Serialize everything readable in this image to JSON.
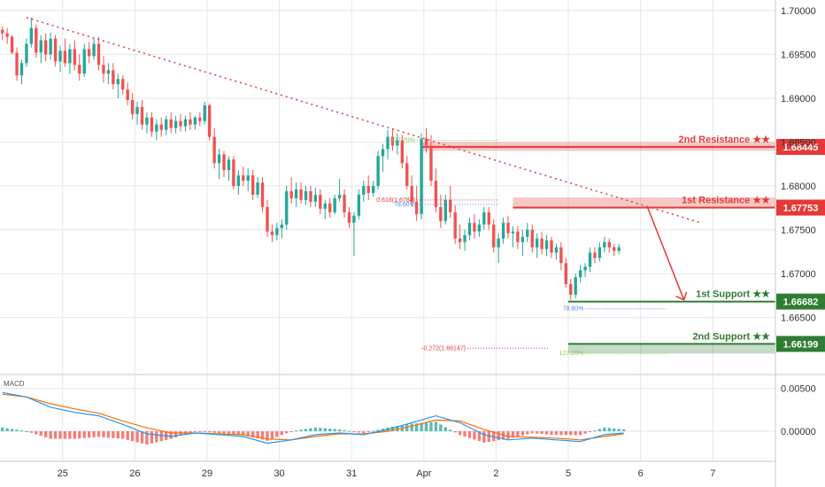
{
  "chart_data": {
    "type": "candlestick",
    "price_axis": {
      "ticks": [
        "1.70000",
        "1.69500",
        "1.69000",
        "1.68500",
        "1.68000",
        "1.67500",
        "1.67000",
        "1.66500"
      ],
      "tick_values": [
        1.7,
        1.695,
        1.69,
        1.685,
        1.68,
        1.675,
        1.67,
        1.665
      ],
      "ylim": [
        1.6585,
        1.7012
      ]
    },
    "time_axis": {
      "labels": [
        "25",
        "26",
        "29",
        "30",
        "31",
        "Apr",
        "2",
        "5",
        "6",
        "7"
      ],
      "positions": [
        1,
        4,
        7,
        10,
        13,
        16,
        19,
        22,
        25,
        28
      ]
    },
    "candles": [
      [
        -1.5,
        1.6978,
        1.6982,
        1.6966,
        1.6974
      ],
      [
        -1.3,
        1.6974,
        1.698,
        1.6962,
        1.697
      ],
      [
        -1.1,
        1.697,
        1.6972,
        1.695,
        1.6952
      ],
      [
        -0.9,
        1.6952,
        1.6958,
        1.692,
        1.6926
      ],
      [
        -0.7,
        1.6926,
        1.6944,
        1.6916,
        1.694
      ],
      [
        -0.5,
        1.694,
        1.6968,
        1.6936,
        1.6962
      ],
      [
        -0.3,
        1.6962,
        1.6992,
        1.6958,
        1.698
      ],
      [
        -0.1,
        1.698,
        1.6984,
        1.6946,
        1.6952
      ],
      [
        0.1,
        1.6952,
        1.6972,
        1.694,
        1.6966
      ],
      [
        0.3,
        1.6966,
        1.6974,
        1.6942,
        1.695
      ],
      [
        0.5,
        1.695,
        1.6975,
        1.6944,
        1.6968
      ],
      [
        0.7,
        1.6968,
        1.6972,
        1.6936,
        1.6942
      ],
      [
        0.9,
        1.6942,
        1.696,
        1.693,
        1.6954
      ],
      [
        1.1,
        1.6954,
        1.6968,
        1.6936,
        1.694
      ],
      [
        1.3,
        1.694,
        1.6962,
        1.6928,
        1.6956
      ],
      [
        1.5,
        1.6956,
        1.6966,
        1.6932,
        1.6938
      ],
      [
        1.7,
        1.6938,
        1.695,
        1.692,
        1.6928
      ],
      [
        1.9,
        1.6928,
        1.6962,
        1.6924,
        1.6956
      ],
      [
        2.1,
        1.6956,
        1.6964,
        1.694,
        1.6948
      ],
      [
        2.3,
        1.6948,
        1.6968,
        1.6944,
        1.6962
      ],
      [
        2.5,
        1.6962,
        1.697,
        1.6932,
        1.6938
      ],
      [
        2.7,
        1.6938,
        1.6948,
        1.6918,
        1.6928
      ],
      [
        2.9,
        1.6928,
        1.694,
        1.6916,
        1.6932
      ],
      [
        3.1,
        1.6932,
        1.694,
        1.691,
        1.6916
      ],
      [
        3.3,
        1.6916,
        1.6928,
        1.69,
        1.6922
      ],
      [
        3.5,
        1.6922,
        1.6926,
        1.6904,
        1.691
      ],
      [
        3.7,
        1.691,
        1.6918,
        1.6892,
        1.6898
      ],
      [
        3.9,
        1.6898,
        1.6906,
        1.6876,
        1.6882
      ],
      [
        4.1,
        1.6882,
        1.6896,
        1.687,
        1.689
      ],
      [
        4.3,
        1.689,
        1.6898,
        1.6864,
        1.687
      ],
      [
        4.5,
        1.687,
        1.6884,
        1.686,
        1.6878
      ],
      [
        4.7,
        1.6878,
        1.6884,
        1.6856,
        1.6862
      ],
      [
        4.9,
        1.6862,
        1.6876,
        1.6852,
        1.687
      ],
      [
        5.1,
        1.687,
        1.6878,
        1.6856,
        1.6864
      ],
      [
        5.3,
        1.6864,
        1.688,
        1.6858,
        1.6876
      ],
      [
        5.5,
        1.6876,
        1.6884,
        1.686,
        1.6866
      ],
      [
        5.7,
        1.6866,
        1.688,
        1.686,
        1.6874
      ],
      [
        5.9,
        1.6874,
        1.6882,
        1.6862,
        1.6868
      ],
      [
        6.1,
        1.6868,
        1.688,
        1.6862,
        1.6876
      ],
      [
        6.3,
        1.6876,
        1.6884,
        1.6864,
        1.687
      ],
      [
        6.5,
        1.687,
        1.688,
        1.6864,
        1.6878
      ],
      [
        6.7,
        1.6878,
        1.6884,
        1.6868,
        1.6874
      ],
      [
        6.9,
        1.6874,
        1.6896,
        1.687,
        1.6892
      ],
      [
        7.1,
        1.6892,
        1.6894,
        1.6852,
        1.6856
      ],
      [
        7.3,
        1.6856,
        1.6866,
        1.682,
        1.6826
      ],
      [
        7.5,
        1.6826,
        1.6842,
        1.6808,
        1.6836
      ],
      [
        7.7,
        1.6836,
        1.684,
        1.681,
        1.6818
      ],
      [
        7.9,
        1.6818,
        1.6834,
        1.6806,
        1.683
      ],
      [
        8.1,
        1.683,
        1.6834,
        1.6796,
        1.68
      ],
      [
        8.3,
        1.68,
        1.6818,
        1.679,
        1.6812
      ],
      [
        8.5,
        1.6812,
        1.6822,
        1.68,
        1.6806
      ],
      [
        8.7,
        1.6806,
        1.682,
        1.6794,
        1.6812
      ],
      [
        8.9,
        1.6812,
        1.6818,
        1.6784,
        1.679
      ],
      [
        9.1,
        1.679,
        1.681,
        1.6786,
        1.6804
      ],
      [
        9.3,
        1.6804,
        1.681,
        1.677,
        1.6776
      ],
      [
        9.5,
        1.6776,
        1.6784,
        1.6742,
        1.6748
      ],
      [
        9.7,
        1.6748,
        1.6756,
        1.6736,
        1.6744
      ],
      [
        9.9,
        1.6744,
        1.6758,
        1.6738,
        1.6752
      ],
      [
        10.1,
        1.6752,
        1.6762,
        1.674,
        1.6756
      ],
      [
        10.3,
        1.6756,
        1.68,
        1.675,
        1.6794
      ],
      [
        10.5,
        1.6794,
        1.681,
        1.678,
        1.6786
      ],
      [
        10.7,
        1.6786,
        1.6804,
        1.6776,
        1.6796
      ],
      [
        10.9,
        1.6796,
        1.6804,
        1.678,
        1.6784
      ],
      [
        11.1,
        1.6784,
        1.68,
        1.6778,
        1.6794
      ],
      [
        11.3,
        1.6794,
        1.68,
        1.6776,
        1.6782
      ],
      [
        11.5,
        1.6782,
        1.6798,
        1.6776,
        1.679
      ],
      [
        11.7,
        1.679,
        1.6796,
        1.6768,
        1.6774
      ],
      [
        11.9,
        1.6774,
        1.6784,
        1.6762,
        1.678
      ],
      [
        12.1,
        1.678,
        1.6786,
        1.6764,
        1.677
      ],
      [
        12.3,
        1.677,
        1.679,
        1.6768,
        1.6786
      ],
      [
        12.5,
        1.6786,
        1.6808,
        1.6782,
        1.679
      ],
      [
        12.7,
        1.679,
        1.6796,
        1.6764,
        1.677
      ],
      [
        12.9,
        1.677,
        1.6776,
        1.6752,
        1.6758
      ],
      [
        13.1,
        1.6758,
        1.677,
        1.672,
        1.6766
      ],
      [
        13.3,
        1.6766,
        1.6796,
        1.6762,
        1.679
      ],
      [
        13.5,
        1.679,
        1.6806,
        1.6782,
        1.68
      ],
      [
        13.7,
        1.68,
        1.6812,
        1.6784,
        1.6792
      ],
      [
        13.9,
        1.6792,
        1.6806,
        1.6788,
        1.68
      ],
      [
        14.1,
        1.68,
        1.684,
        1.6796,
        1.6834
      ],
      [
        14.3,
        1.6834,
        1.6848,
        1.6816,
        1.6842
      ],
      [
        14.5,
        1.6842,
        1.6864,
        1.683,
        1.6856
      ],
      [
        14.7,
        1.6856,
        1.6866,
        1.684,
        1.6846
      ],
      [
        14.9,
        1.6846,
        1.686,
        1.6836,
        1.6852
      ],
      [
        15.1,
        1.6852,
        1.6858,
        1.682,
        1.6826
      ],
      [
        15.3,
        1.6826,
        1.6834,
        1.6796,
        1.68
      ],
      [
        15.5,
        1.68,
        1.6812,
        1.6776,
        1.6782
      ],
      [
        15.7,
        1.6782,
        1.68,
        1.676,
        1.6768
      ],
      [
        15.9,
        1.6768,
        1.686,
        1.6762,
        1.6854
      ],
      [
        16.1,
        1.6854,
        1.6866,
        1.6838,
        1.6846
      ],
      [
        16.3,
        1.6846,
        1.6858,
        1.68,
        1.6806
      ],
      [
        16.5,
        1.6806,
        1.682,
        1.677,
        1.6776
      ],
      [
        16.7,
        1.6776,
        1.679,
        1.6752,
        1.676
      ],
      [
        16.9,
        1.676,
        1.679,
        1.6756,
        1.6784
      ],
      [
        17.1,
        1.6784,
        1.68,
        1.6764,
        1.677
      ],
      [
        17.3,
        1.677,
        1.6778,
        1.6734,
        1.674
      ],
      [
        17.5,
        1.674,
        1.6756,
        1.6728,
        1.6736
      ],
      [
        17.7,
        1.6736,
        1.675,
        1.6726,
        1.6744
      ],
      [
        17.9,
        1.6744,
        1.6764,
        1.6738,
        1.6758
      ],
      [
        18.1,
        1.6758,
        1.6768,
        1.674,
        1.6748
      ],
      [
        18.3,
        1.6748,
        1.6762,
        1.6742,
        1.6756
      ],
      [
        18.5,
        1.6756,
        1.6776,
        1.675,
        1.677
      ],
      [
        18.7,
        1.677,
        1.6776,
        1.675,
        1.6756
      ],
      [
        18.9,
        1.6756,
        1.6762,
        1.6724,
        1.673
      ],
      [
        19.1,
        1.673,
        1.6746,
        1.6712,
        1.674
      ],
      [
        19.3,
        1.674,
        1.6764,
        1.6734,
        1.6758
      ],
      [
        19.5,
        1.6758,
        1.6766,
        1.674,
        1.6746
      ],
      [
        19.7,
        1.6746,
        1.6754,
        1.673,
        1.6748
      ],
      [
        19.9,
        1.6748,
        1.6754,
        1.6728,
        1.6736
      ],
      [
        20.1,
        1.6736,
        1.675,
        1.672,
        1.6742
      ],
      [
        20.3,
        1.6742,
        1.6758,
        1.6736,
        1.675
      ],
      [
        20.5,
        1.675,
        1.6756,
        1.6724,
        1.673
      ],
      [
        20.7,
        1.673,
        1.6746,
        1.6718,
        1.674
      ],
      [
        20.9,
        1.674,
        1.6748,
        1.6722,
        1.6728
      ],
      [
        21.1,
        1.6728,
        1.6744,
        1.672,
        1.6738
      ],
      [
        21.3,
        1.6738,
        1.6742,
        1.6718,
        1.6724
      ],
      [
        21.5,
        1.6724,
        1.6734,
        1.6716,
        1.673
      ],
      [
        21.7,
        1.673,
        1.6736,
        1.6704,
        1.6712
      ],
      [
        21.9,
        1.6712,
        1.6718,
        1.6684,
        1.6688
      ],
      [
        22.1,
        1.6688,
        1.6694,
        1.667,
        1.6676
      ],
      [
        22.3,
        1.6676,
        1.67,
        1.6672,
        1.6696
      ],
      [
        22.5,
        1.6696,
        1.671,
        1.669,
        1.6704
      ],
      [
        22.7,
        1.6704,
        1.6712,
        1.6696,
        1.6708
      ],
      [
        22.9,
        1.6708,
        1.673,
        1.6702,
        1.6724
      ],
      [
        23.1,
        1.6724,
        1.673,
        1.6712,
        1.6718
      ],
      [
        23.3,
        1.6718,
        1.6736,
        1.6714,
        1.673
      ],
      [
        23.5,
        1.673,
        1.6742,
        1.6724,
        1.6736
      ],
      [
        23.7,
        1.6736,
        1.674,
        1.6724,
        1.673
      ],
      [
        23.9,
        1.673,
        1.6734,
        1.672,
        1.6726
      ],
      [
        24.1,
        1.6726,
        1.6734,
        1.6722,
        1.673
      ]
    ],
    "trendline": {
      "from": [
        -0.5,
        1.6992
      ],
      "to": [
        27.5,
        1.6758
      ],
      "color": "#e53935"
    },
    "levels": [
      {
        "label": "2nd Resistance ★★",
        "price_label": "1.68445",
        "value": 1.68445,
        "zone": [
          1.684,
          1.685
        ],
        "from_x": 15.9,
        "color": "#e53935",
        "kind": "resistance"
      },
      {
        "label": "1st Resistance ★★",
        "price_label": "1.67753",
        "value": 1.67753,
        "zone": [
          1.6775,
          1.6787
        ],
        "from_x": 19.7,
        "color": "#e53935",
        "kind": "resistance"
      },
      {
        "label": "1st Support ★★",
        "price_label": "1.66682",
        "value": 1.66682,
        "from_x": 22.0,
        "color": "#2e7d32",
        "kind": "support"
      },
      {
        "label": "2nd Support ★★",
        "price_label": "1.66199",
        "value": 1.66199,
        "zone": [
          1.6609,
          1.662
        ],
        "from_x": 22.0,
        "color": "#2e7d32",
        "kind": "support"
      }
    ],
    "fib_annotations": [
      {
        "text": "127.20%",
        "x": 14.9,
        "y": 1.6852,
        "color": "#8bc34a"
      },
      {
        "text": "0.618(1.6784)",
        "x": 14.9,
        "y": 1.6784,
        "color": "#e53935"
      },
      {
        "text": "78.60%",
        "x": 14.9,
        "y": 1.6779,
        "color": "#4c8bf5"
      },
      {
        "text": "78.60%",
        "x": 21.9,
        "y": 1.666,
        "color": "#4c8bf5"
      },
      {
        "text": "-0.272(1.66147)",
        "x": 17.0,
        "y": 1.6615,
        "color": "#e53935"
      },
      {
        "text": "127.20%",
        "x": 21.9,
        "y": 1.6609,
        "color": "#8bc34a"
      }
    ],
    "macd": {
      "label": "MACD",
      "ticks": [
        "0.00500",
        "0.00000"
      ],
      "tick_values": [
        0.005,
        0.0
      ],
      "ylim": [
        -0.0035,
        0.0065
      ],
      "macd_line_color": "#2196f3",
      "signal_line_color": "#ff6d00",
      "macd_line": [
        [
          -1.5,
          0.0045
        ],
        [
          -0.5,
          0.004
        ],
        [
          0.5,
          0.0028
        ],
        [
          1.5,
          0.0022
        ],
        [
          2.5,
          0.0018
        ],
        [
          3.5,
          0.0008
        ],
        [
          4.5,
          -0.0003
        ],
        [
          5.5,
          -0.0006
        ],
        [
          6.5,
          -0.0002
        ],
        [
          7.5,
          -0.0004
        ],
        [
          8.5,
          -0.0006
        ],
        [
          9.5,
          -0.0014
        ],
        [
          10.5,
          -0.001
        ],
        [
          11.5,
          -0.0004
        ],
        [
          12.5,
          -0.0002
        ],
        [
          13.5,
          -0.0004
        ],
        [
          14.5,
          0.0002
        ],
        [
          15.5,
          0.001
        ],
        [
          16.5,
          0.0018
        ],
        [
          17.5,
          0.001
        ],
        [
          18.5,
          -0.0004
        ],
        [
          19.5,
          -0.001
        ],
        [
          20.5,
          -0.0008
        ],
        [
          21.5,
          -0.001
        ],
        [
          22.5,
          -0.0012
        ],
        [
          23.5,
          -0.0004
        ],
        [
          24.3,
          -0.0002
        ]
      ],
      "signal_line": [
        [
          -1.5,
          0.0043
        ],
        [
          -0.5,
          0.004
        ],
        [
          0.5,
          0.0032
        ],
        [
          1.5,
          0.0026
        ],
        [
          2.5,
          0.0021
        ],
        [
          3.5,
          0.0012
        ],
        [
          4.5,
          0.0004
        ],
        [
          5.5,
          -0.0002
        ],
        [
          6.5,
          -0.0002
        ],
        [
          7.5,
          -0.0003
        ],
        [
          8.5,
          -0.0004
        ],
        [
          9.5,
          -0.0009
        ],
        [
          10.5,
          -0.001
        ],
        [
          11.5,
          -0.0006
        ],
        [
          12.5,
          -0.0003
        ],
        [
          13.5,
          -0.0003
        ],
        [
          14.5,
          0.0
        ],
        [
          15.5,
          0.0006
        ],
        [
          16.5,
          0.0013
        ],
        [
          17.5,
          0.0012
        ],
        [
          18.5,
          0.0002
        ],
        [
          19.5,
          -0.0006
        ],
        [
          20.5,
          -0.0007
        ],
        [
          21.5,
          -0.0008
        ],
        [
          22.5,
          -0.001
        ],
        [
          23.5,
          -0.0006
        ],
        [
          24.3,
          -0.0003
        ]
      ]
    },
    "colors": {
      "up": "#26a69a",
      "down": "#ef5350",
      "grid": "#e6e6e6",
      "axis_text": "#333333"
    }
  }
}
